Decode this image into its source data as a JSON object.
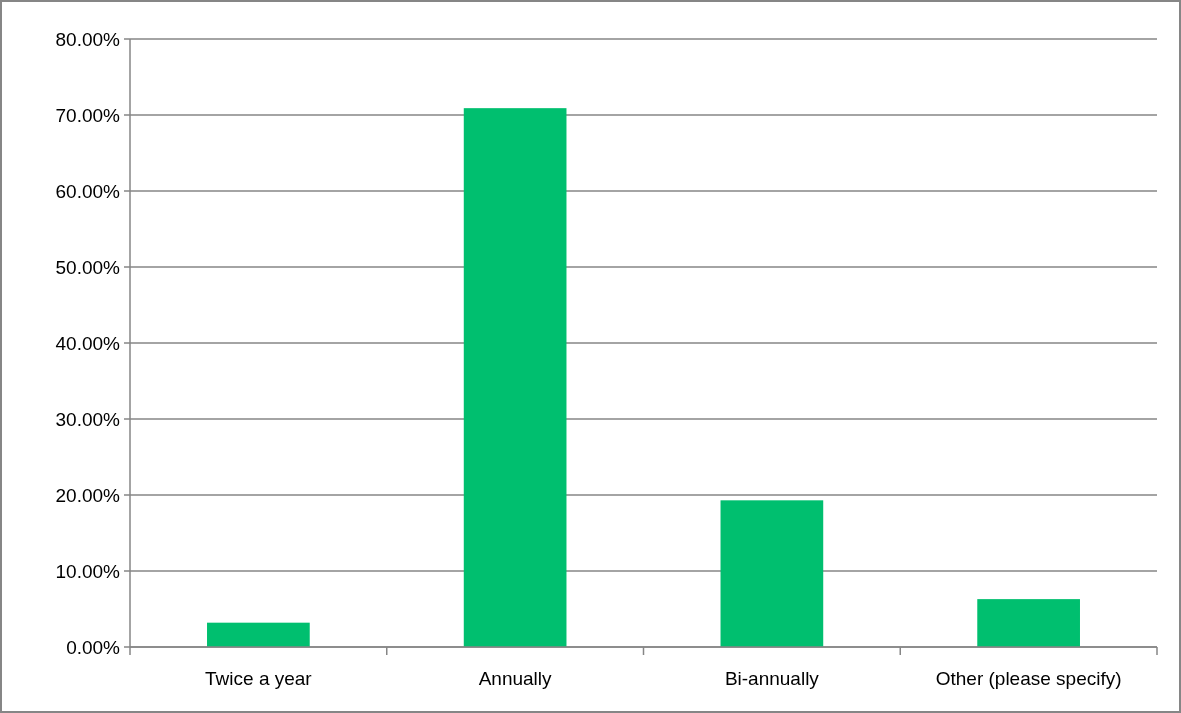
{
  "chart_data": {
    "type": "bar",
    "categories": [
      "Twice a year",
      "Annually",
      "Bi-annually",
      "Other (please specify)"
    ],
    "values": [
      3.2,
      70.9,
      19.3,
      6.3
    ],
    "color": "#00bf6f",
    "ylim": [
      0,
      80
    ],
    "yticks": [
      {
        "value": 0,
        "label": "0.00%"
      },
      {
        "value": 10,
        "label": "10.00%"
      },
      {
        "value": 20,
        "label": "20.00%"
      },
      {
        "value": 30,
        "label": "30.00%"
      },
      {
        "value": 40,
        "label": "40.00%"
      },
      {
        "value": 50,
        "label": "50.00%"
      },
      {
        "value": 60,
        "label": "60.00%"
      },
      {
        "value": 70,
        "label": "70.00%"
      },
      {
        "value": 80,
        "label": "80.00%"
      }
    ],
    "grid": "y"
  }
}
